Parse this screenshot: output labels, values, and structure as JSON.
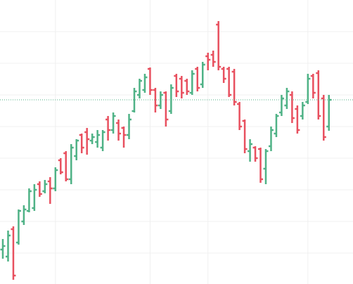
{
  "chart_data": {
    "type": "ohlc",
    "categories": [
      null,
      null,
      null,
      null,
      null,
      null,
      null,
      null,
      null,
      null,
      null,
      null,
      null,
      null,
      null,
      null,
      null,
      null,
      null,
      null,
      null,
      null,
      null,
      null,
      null,
      null,
      null,
      null,
      null,
      null,
      null,
      null,
      null,
      null,
      null,
      null,
      null,
      null,
      null,
      null,
      null,
      null,
      null,
      null,
      null,
      null,
      null,
      null,
      null,
      null,
      null,
      null,
      null,
      null,
      null,
      null,
      null,
      null,
      null,
      null,
      null,
      null,
      null
    ],
    "open": [
      49,
      39,
      78,
      59,
      89,
      104,
      108,
      142,
      132,
      146,
      136,
      176,
      186,
      149,
      182,
      212,
      216,
      204,
      202,
      194,
      234,
      219,
      229,
      222,
      212,
      246,
      269,
      276,
      306,
      276,
      254,
      272,
      246,
      296,
      292,
      289,
      272,
      306,
      284,
      324,
      326,
      369,
      306,
      306,
      302,
      256,
      232,
      189,
      194,
      192,
      164,
      196,
      214,
      244,
      254,
      269,
      249,
      239,
      259,
      296,
      300,
      264,
      224
    ],
    "high": [
      64,
      76,
      82,
      106,
      112,
      136,
      142,
      146,
      148,
      152,
      166,
      179,
      189,
      199,
      206,
      214,
      222,
      214,
      219,
      219,
      239,
      244,
      234,
      224,
      242,
      279,
      292,
      299,
      308,
      279,
      274,
      274,
      284,
      299,
      296,
      292,
      304,
      309,
      316,
      329,
      332,
      374,
      309,
      309,
      306,
      259,
      234,
      206,
      196,
      194,
      192,
      224,
      242,
      269,
      279,
      274,
      254,
      259,
      299,
      299,
      304,
      269,
      269
    ],
    "low": [
      36,
      32,
      6,
      56,
      84,
      102,
      104,
      124,
      129,
      114,
      132,
      156,
      146,
      142,
      176,
      186,
      184,
      199,
      194,
      189,
      204,
      214,
      204,
      194,
      206,
      244,
      264,
      272,
      269,
      244,
      249,
      224,
      242,
      266,
      264,
      269,
      269,
      274,
      279,
      304,
      309,
      304,
      286,
      266,
      254,
      219,
      186,
      174,
      174,
      144,
      142,
      189,
      209,
      239,
      249,
      229,
      214,
      234,
      256,
      264,
      234,
      204,
      218
    ],
    "close": [
      54,
      69,
      12,
      104,
      106,
      132,
      134,
      128,
      142,
      136,
      162,
      159,
      149,
      194,
      204,
      194,
      206,
      209,
      212,
      216,
      219,
      239,
      214,
      212,
      234,
      274,
      289,
      294,
      276,
      254,
      269,
      234,
      279,
      274,
      272,
      274,
      299,
      279,
      312,
      319,
      316,
      309,
      292,
      269,
      259,
      224,
      192,
      199,
      179,
      149,
      189,
      219,
      239,
      264,
      274,
      236,
      219,
      254,
      292,
      272,
      239,
      209,
      262
    ],
    "up_color": "#4fb286",
    "down_color": "#e8505f",
    "ylim": [
      0,
      404
    ],
    "yticks": [
      44,
      89,
      134,
      179,
      224,
      269,
      314,
      359
    ],
    "xgrid": [
      10,
      28,
      39,
      58
    ],
    "grid": true,
    "last_price_line": true
  }
}
